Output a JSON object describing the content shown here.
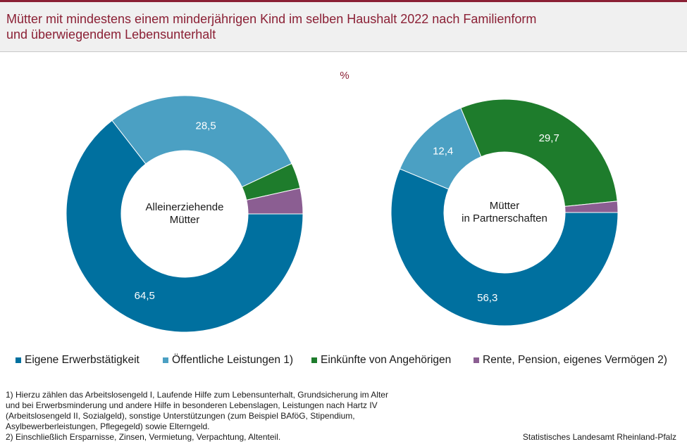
{
  "title_lines": [
    "Mütter mit mindestens einem minderjährigen Kind im selben Haushalt 2022 nach Familienform",
    "und überwiegendem Lebensunterhalt"
  ],
  "unit": "%",
  "colors": {
    "eigene": "#00709f",
    "oeffentlich": "#4ba0c3",
    "angehoerige": "#1e7c2c",
    "rente": "#8b5e92",
    "title": "#8b2035"
  },
  "chart_data": [
    {
      "type": "pie",
      "subtype": "donut",
      "center_label": [
        "Alleinerziehende",
        "Mütter"
      ],
      "categories": [
        "Eigene Erwerbstätigkeit",
        "Öffentliche Leistungen 1)",
        "Einkünfte von Angehörigen",
        "Rente, Pension, eigenes Vermögen 2)"
      ],
      "values": [
        64.5,
        28.5,
        3.5,
        3.5
      ],
      "data_labels": [
        "64,5",
        "28,5",
        "",
        ""
      ]
    },
    {
      "type": "pie",
      "subtype": "donut",
      "center_label": [
        "Mütter",
        "in Partnerschaften"
      ],
      "categories": [
        "Eigene Erwerbstätigkeit",
        "Öffentliche Leistungen 1)",
        "Einkünfte von Angehörigen",
        "Rente, Pension, eigenes Vermögen 2)"
      ],
      "values": [
        56.3,
        12.4,
        29.7,
        1.6
      ],
      "data_labels": [
        "56,3",
        "12,4",
        "29,7",
        ""
      ]
    }
  ],
  "legend": [
    {
      "label": "Eigene Erwerbstätigkeit",
      "color": "#00709f"
    },
    {
      "label": "Öffentliche Leistungen 1)",
      "color": "#4ba0c3"
    },
    {
      "label": "Einkünfte von Angehörigen",
      "color": "#1e7c2c"
    },
    {
      "label": "Rente, Pension, eigenes Vermögen 2)",
      "color": "#8b5e92"
    }
  ],
  "footnotes": [
    "1) Hierzu zählen das Arbeitslosengeld I, Laufende  Hilfe zum Lebensunterhalt,  Grundsicherung  im Alter",
    "und bei Erwerbsminderung  und andere Hilfe in besonderen Lebenslagen,  Leistungen nach Hartz IV",
    "(Arbeitslosengeld  II,  Sozialgeld),  sonstige Unterstützungen  (zum Beispiel BAföG, Stipendium,",
    "Asylbewerberleistungen,  Pflegegeld)  sowie Elterngeld.",
    "2) Einschließlich Ersparnisse,  Zinsen,  Vermietung,  Verpachtung,  Altenteil."
  ],
  "source": "Statistisches Landesamt Rheinland-Pfalz"
}
